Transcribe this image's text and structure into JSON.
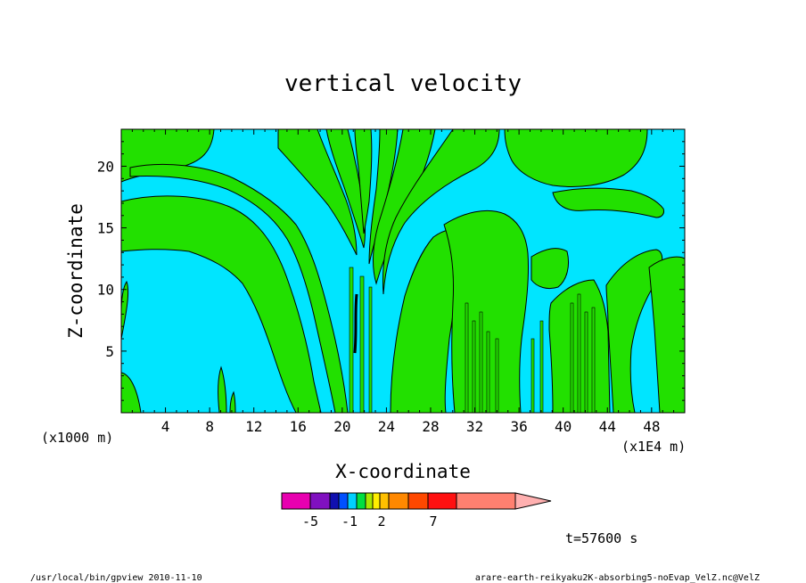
{
  "chart_data": {
    "type": "heatmap",
    "title": "vertical velocity",
    "xlabel": "X-coordinate",
    "ylabel": "Z-coordinate",
    "x_unit": "(x1E4 m)",
    "y_unit": "(x1000 m)",
    "xlim": [
      0,
      51
    ],
    "ylim": [
      0,
      23
    ],
    "x_ticks": [
      4,
      8,
      12,
      16,
      20,
      24,
      28,
      32,
      36,
      40,
      44,
      48
    ],
    "y_ticks": [
      5,
      10,
      15,
      20
    ],
    "colors": {
      "negative_small": "#00e5ff",
      "positive_small": "#22e000",
      "contour": "#000000"
    },
    "colorbar": {
      "levels_colors": [
        "#e800b0",
        "#8010c0",
        "#1010b0",
        "#0050ff",
        "#00d0ff",
        "#00e040",
        "#a8e800",
        "#ffee00",
        "#ffc000",
        "#ff8800",
        "#ff4800",
        "#ff1010",
        "#ff8070",
        "#ffb0b0"
      ],
      "tick_labels": [
        "-5",
        "-1",
        "2",
        "7"
      ]
    },
    "time_label": "t=57600 s",
    "footer_left": "/usr/local/bin/gpview  2010-11-10",
    "footer_right": "arare-earth-reikyaku2K-absorbing5-noEvap_VelZ.nc@VelZ"
  }
}
